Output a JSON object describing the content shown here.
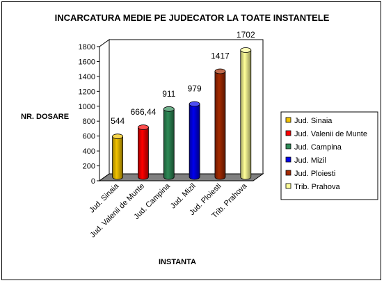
{
  "chart_data": {
    "type": "bar",
    "title": "INCARCATURA MEDIE PE JUDECATOR LA TOATE INSTANTELE",
    "xlabel": "INSTANTA",
    "ylabel": "NR. DOSARE",
    "categories": [
      "Jud. Sinaia",
      "Jud. Valenii de Munte",
      "Jud. Campina",
      "Jud. Mizil",
      "Jud. Ploiesti",
      "Trib. Prahova"
    ],
    "values": [
      544,
      666.44,
      911,
      979,
      1417,
      1702
    ],
    "data_labels": [
      "544",
      "666,44",
      "911",
      "979",
      "1417",
      "1702"
    ],
    "colors": [
      "#f2c300",
      "#ff0000",
      "#2e8b57",
      "#0000ee",
      "#a52a00",
      "#ffff99"
    ],
    "ylim": [
      0,
      1800
    ],
    "yticks": [
      0,
      200,
      400,
      600,
      800,
      1000,
      1200,
      1400,
      1600,
      1800
    ],
    "legend_position": "right",
    "grid": false,
    "style": "3d-cylinder"
  }
}
